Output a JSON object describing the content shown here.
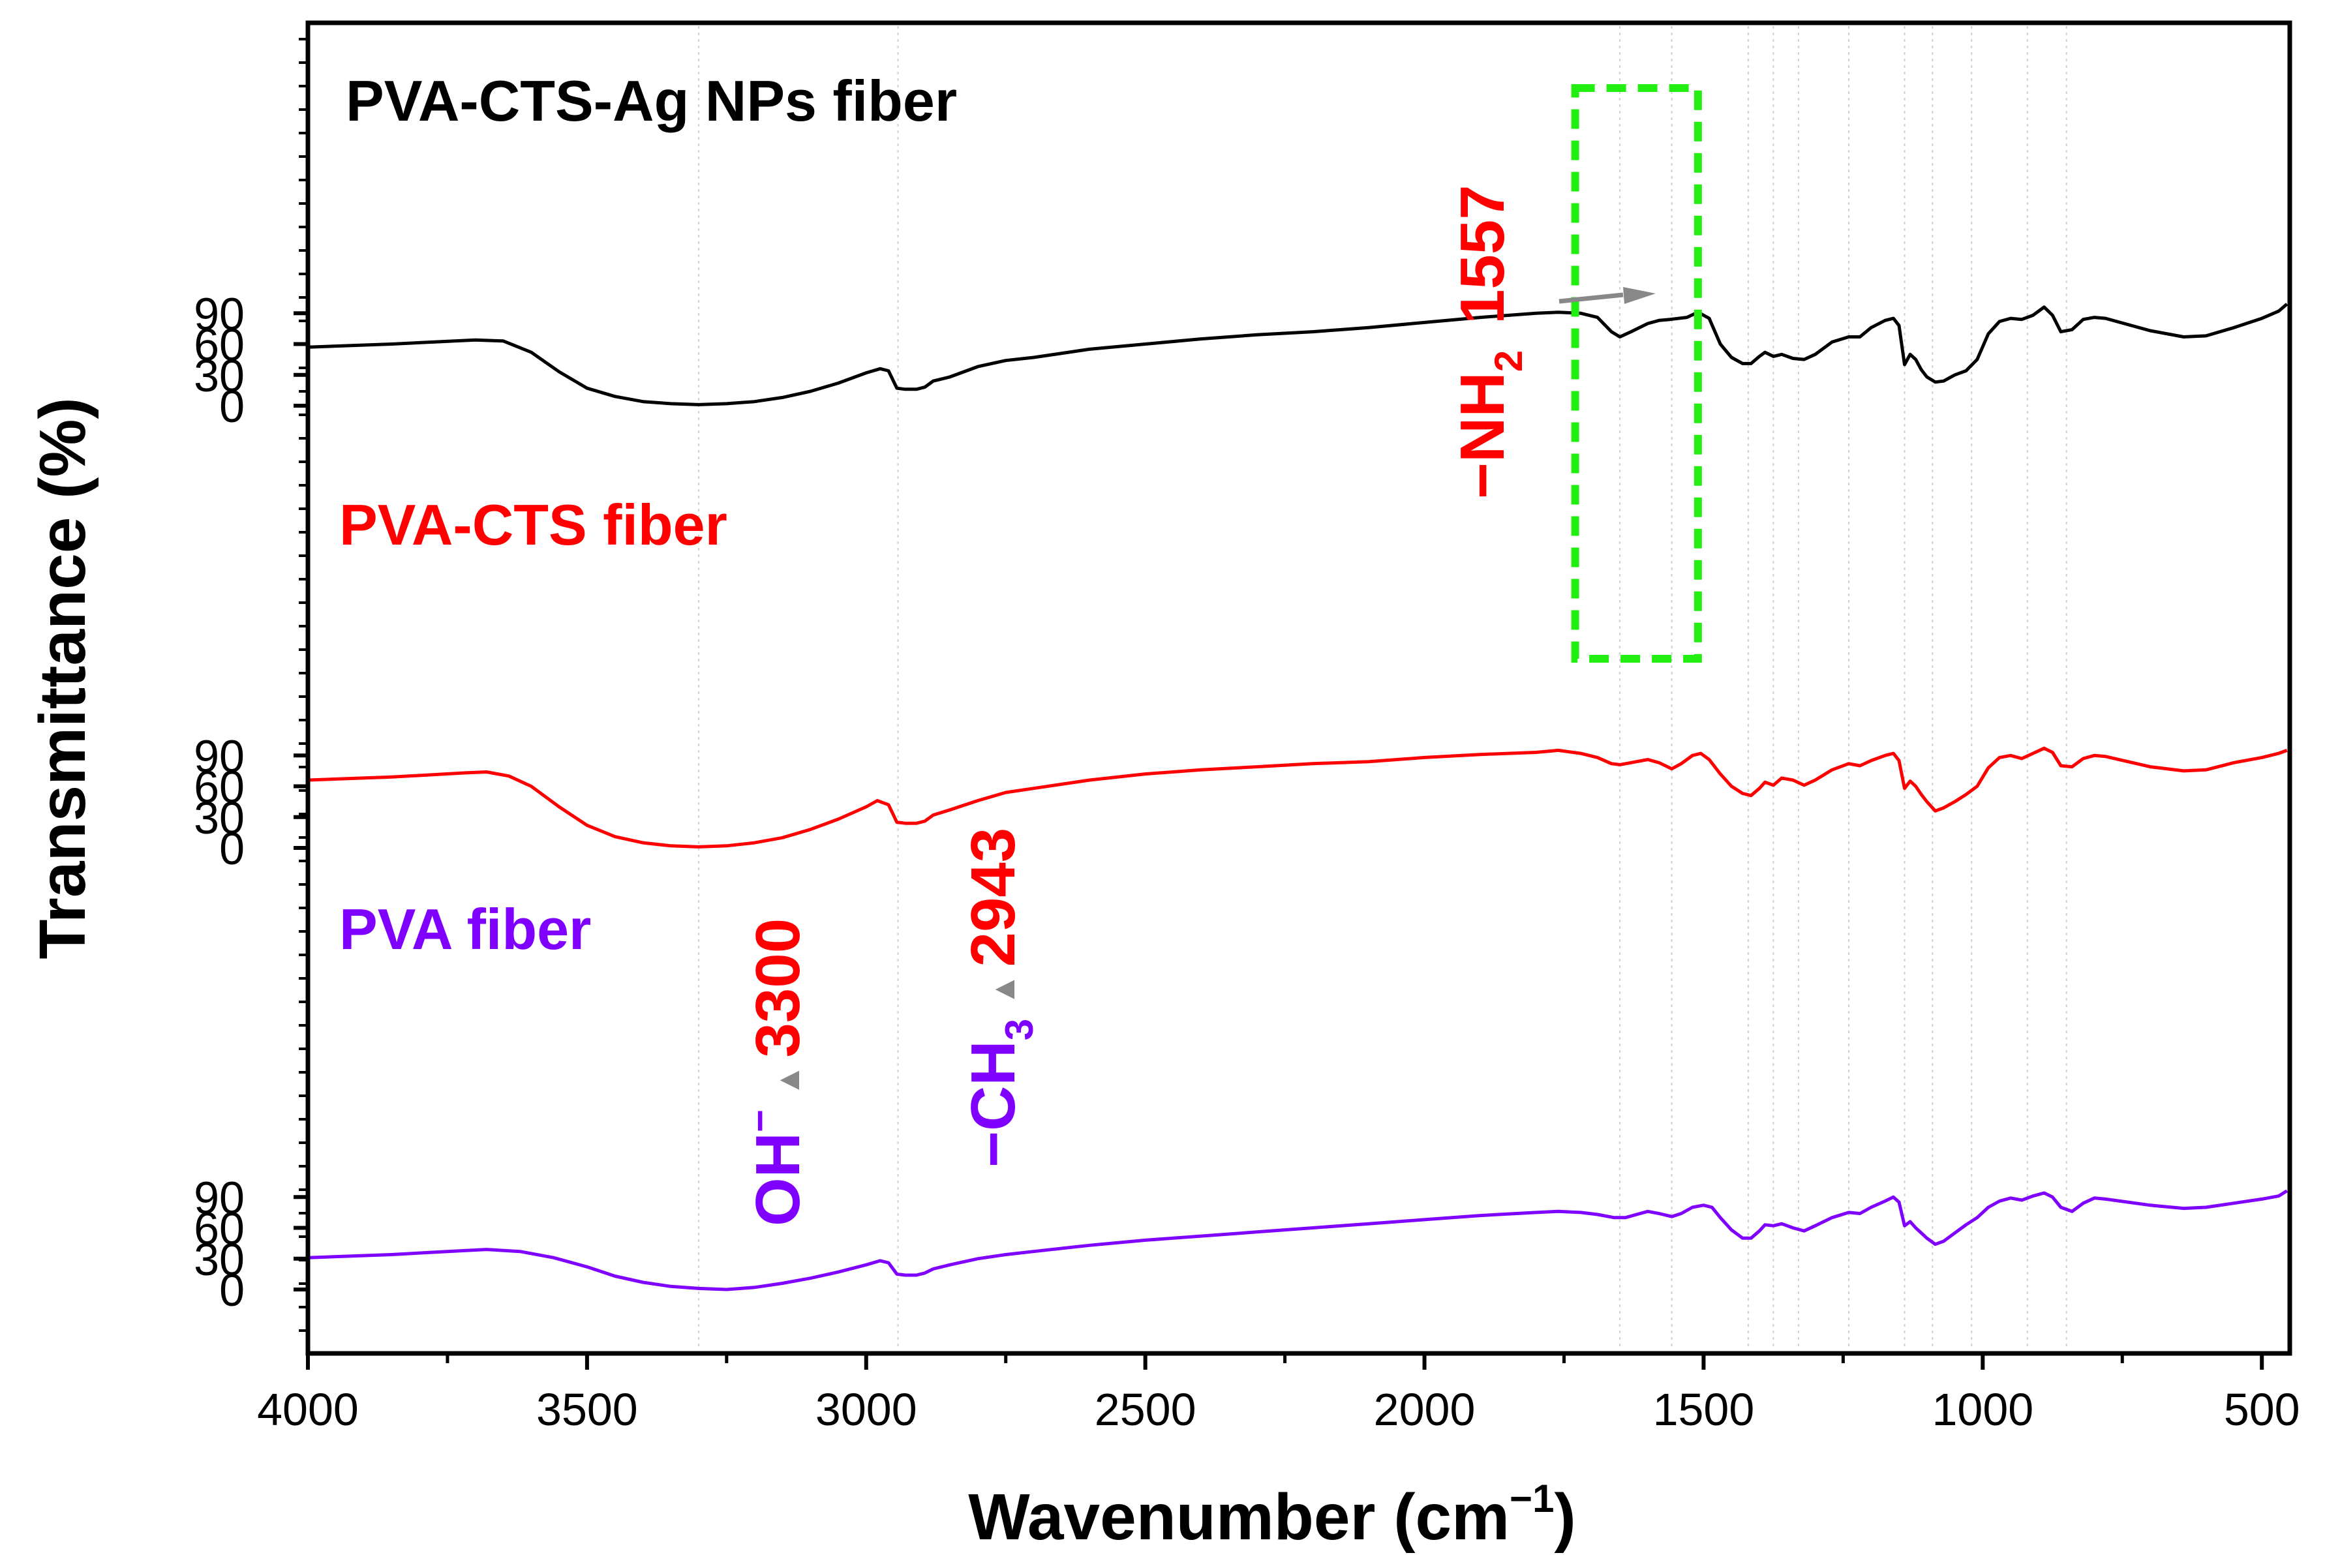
{
  "chart_data": {
    "type": "line",
    "xlabel": "Wavenumber (cm",
    "xlabel_sup": "−1",
    "xlabel_close": ")",
    "ylabel": "Transmittance (%)",
    "xlim": [
      4000,
      450
    ],
    "x_ticks": [
      4000,
      3500,
      3000,
      2500,
      2000,
      1500,
      1000,
      500
    ],
    "y_ticks": [
      0,
      30,
      60,
      90
    ],
    "reference_lines": [
      3300,
      2943,
      1650,
      1557,
      1420,
      1375,
      1330,
      1240,
      1140,
      1090,
      1020,
      920,
      850
    ],
    "series": [
      {
        "name": "PVA-CTS-Ag NPs fiber",
        "color": "#000000",
        "offset": 0,
        "points": [
          [
            4000,
            57
          ],
          [
            3850,
            60
          ],
          [
            3700,
            64
          ],
          [
            3650,
            63
          ],
          [
            3600,
            52
          ],
          [
            3550,
            33
          ],
          [
            3500,
            17
          ],
          [
            3450,
            9
          ],
          [
            3400,
            4
          ],
          [
            3350,
            2
          ],
          [
            3300,
            1
          ],
          [
            3250,
            2
          ],
          [
            3200,
            4
          ],
          [
            3150,
            8
          ],
          [
            3100,
            14
          ],
          [
            3050,
            22
          ],
          [
            3000,
            32
          ],
          [
            2975,
            36
          ],
          [
            2960,
            34
          ],
          [
            2945,
            17
          ],
          [
            2930,
            16
          ],
          [
            2910,
            16
          ],
          [
            2895,
            18
          ],
          [
            2880,
            24
          ],
          [
            2850,
            28
          ],
          [
            2800,
            38
          ],
          [
            2750,
            44
          ],
          [
            2700,
            47
          ],
          [
            2600,
            55
          ],
          [
            2500,
            60
          ],
          [
            2400,
            65
          ],
          [
            2300,
            69
          ],
          [
            2200,
            72
          ],
          [
            2100,
            76
          ],
          [
            2000,
            81
          ],
          [
            1900,
            86
          ],
          [
            1800,
            90
          ],
          [
            1760,
            91
          ],
          [
            1720,
            90
          ],
          [
            1690,
            86
          ],
          [
            1665,
            72
          ],
          [
            1650,
            67
          ],
          [
            1630,
            72
          ],
          [
            1600,
            80
          ],
          [
            1580,
            83
          ],
          [
            1560,
            84
          ],
          [
            1530,
            86
          ],
          [
            1510,
            91
          ],
          [
            1490,
            85
          ],
          [
            1470,
            60
          ],
          [
            1450,
            47
          ],
          [
            1430,
            41
          ],
          [
            1415,
            41
          ],
          [
            1400,
            48
          ],
          [
            1390,
            52
          ],
          [
            1375,
            48
          ],
          [
            1360,
            50
          ],
          [
            1340,
            46
          ],
          [
            1320,
            45
          ],
          [
            1300,
            50
          ],
          [
            1270,
            62
          ],
          [
            1240,
            67
          ],
          [
            1220,
            67
          ],
          [
            1200,
            76
          ],
          [
            1175,
            83
          ],
          [
            1160,
            85
          ],
          [
            1150,
            78
          ],
          [
            1140,
            40
          ],
          [
            1130,
            50
          ],
          [
            1120,
            45
          ],
          [
            1110,
            35
          ],
          [
            1100,
            28
          ],
          [
            1085,
            23
          ],
          [
            1070,
            24
          ],
          [
            1050,
            30
          ],
          [
            1030,
            34
          ],
          [
            1010,
            45
          ],
          [
            990,
            70
          ],
          [
            970,
            82
          ],
          [
            950,
            85
          ],
          [
            930,
            84
          ],
          [
            910,
            88
          ],
          [
            890,
            96
          ],
          [
            875,
            88
          ],
          [
            860,
            72
          ],
          [
            840,
            74
          ],
          [
            820,
            84
          ],
          [
            800,
            86
          ],
          [
            780,
            85
          ],
          [
            700,
            73
          ],
          [
            640,
            67
          ],
          [
            600,
            68
          ],
          [
            550,
            76
          ],
          [
            500,
            85
          ],
          [
            470,
            92
          ],
          [
            455,
            99
          ]
        ]
      },
      {
        "name": "PVA-CTS fiber",
        "color": "#ff0000",
        "offset": -130,
        "points": [
          [
            4000,
            66
          ],
          [
            3850,
            69
          ],
          [
            3720,
            73
          ],
          [
            3680,
            74
          ],
          [
            3640,
            70
          ],
          [
            3600,
            60
          ],
          [
            3550,
            40
          ],
          [
            3500,
            22
          ],
          [
            3450,
            11
          ],
          [
            3400,
            5
          ],
          [
            3350,
            2
          ],
          [
            3300,
            1
          ],
          [
            3250,
            2
          ],
          [
            3200,
            5
          ],
          [
            3150,
            10
          ],
          [
            3100,
            18
          ],
          [
            3050,
            28
          ],
          [
            3000,
            40
          ],
          [
            2980,
            46
          ],
          [
            2960,
            42
          ],
          [
            2945,
            25
          ],
          [
            2930,
            24
          ],
          [
            2910,
            24
          ],
          [
            2895,
            26
          ],
          [
            2880,
            32
          ],
          [
            2850,
            37
          ],
          [
            2800,
            46
          ],
          [
            2750,
            54
          ],
          [
            2700,
            58
          ],
          [
            2600,
            66
          ],
          [
            2500,
            72
          ],
          [
            2400,
            76
          ],
          [
            2300,
            79
          ],
          [
            2200,
            82
          ],
          [
            2100,
            84
          ],
          [
            2000,
            88
          ],
          [
            1900,
            91
          ],
          [
            1800,
            93
          ],
          [
            1760,
            95
          ],
          [
            1720,
            92
          ],
          [
            1690,
            88
          ],
          [
            1665,
            82
          ],
          [
            1650,
            81
          ],
          [
            1630,
            83
          ],
          [
            1600,
            86
          ],
          [
            1580,
            83
          ],
          [
            1557,
            77
          ],
          [
            1540,
            82
          ],
          [
            1520,
            90
          ],
          [
            1505,
            92
          ],
          [
            1490,
            86
          ],
          [
            1470,
            72
          ],
          [
            1450,
            60
          ],
          [
            1430,
            53
          ],
          [
            1415,
            51
          ],
          [
            1400,
            58
          ],
          [
            1390,
            64
          ],
          [
            1375,
            61
          ],
          [
            1360,
            68
          ],
          [
            1340,
            66
          ],
          [
            1320,
            61
          ],
          [
            1300,
            66
          ],
          [
            1270,
            76
          ],
          [
            1240,
            82
          ],
          [
            1220,
            80
          ],
          [
            1200,
            85
          ],
          [
            1175,
            90
          ],
          [
            1160,
            92
          ],
          [
            1150,
            85
          ],
          [
            1140,
            58
          ],
          [
            1130,
            65
          ],
          [
            1120,
            60
          ],
          [
            1110,
            52
          ],
          [
            1100,
            45
          ],
          [
            1085,
            36
          ],
          [
            1070,
            39
          ],
          [
            1050,
            45
          ],
          [
            1030,
            52
          ],
          [
            1010,
            60
          ],
          [
            990,
            78
          ],
          [
            970,
            88
          ],
          [
            950,
            90
          ],
          [
            930,
            87
          ],
          [
            910,
            92
          ],
          [
            890,
            97
          ],
          [
            875,
            93
          ],
          [
            860,
            80
          ],
          [
            840,
            79
          ],
          [
            820,
            87
          ],
          [
            800,
            90
          ],
          [
            780,
            89
          ],
          [
            700,
            79
          ],
          [
            640,
            75
          ],
          [
            600,
            76
          ],
          [
            550,
            83
          ],
          [
            500,
            88
          ],
          [
            470,
            92
          ],
          [
            455,
            95
          ]
        ]
      },
      {
        "name": "PVA fiber",
        "color": "#7f00ff",
        "offset": -260,
        "points": [
          [
            4000,
            31
          ],
          [
            3850,
            34
          ],
          [
            3750,
            37
          ],
          [
            3680,
            39
          ],
          [
            3620,
            37
          ],
          [
            3560,
            31
          ],
          [
            3500,
            22
          ],
          [
            3450,
            13
          ],
          [
            3400,
            7
          ],
          [
            3350,
            3
          ],
          [
            3300,
            1
          ],
          [
            3250,
            0
          ],
          [
            3200,
            2
          ],
          [
            3150,
            6
          ],
          [
            3100,
            11
          ],
          [
            3050,
            17
          ],
          [
            3000,
            24
          ],
          [
            2975,
            28
          ],
          [
            2960,
            26
          ],
          [
            2945,
            15
          ],
          [
            2930,
            14
          ],
          [
            2910,
            14
          ],
          [
            2895,
            16
          ],
          [
            2880,
            20
          ],
          [
            2850,
            24
          ],
          [
            2800,
            30
          ],
          [
            2750,
            34
          ],
          [
            2700,
            37
          ],
          [
            2600,
            43
          ],
          [
            2500,
            48
          ],
          [
            2400,
            52
          ],
          [
            2300,
            56
          ],
          [
            2200,
            60
          ],
          [
            2100,
            64
          ],
          [
            2000,
            68
          ],
          [
            1900,
            72
          ],
          [
            1800,
            75
          ],
          [
            1760,
            76
          ],
          [
            1720,
            75
          ],
          [
            1690,
            73
          ],
          [
            1660,
            70
          ],
          [
            1640,
            70
          ],
          [
            1620,
            73
          ],
          [
            1600,
            76
          ],
          [
            1580,
            74
          ],
          [
            1557,
            71
          ],
          [
            1540,
            74
          ],
          [
            1520,
            80
          ],
          [
            1500,
            82
          ],
          [
            1485,
            80
          ],
          [
            1470,
            70
          ],
          [
            1450,
            58
          ],
          [
            1430,
            50
          ],
          [
            1415,
            50
          ],
          [
            1400,
            57
          ],
          [
            1390,
            63
          ],
          [
            1375,
            62
          ],
          [
            1360,
            64
          ],
          [
            1340,
            60
          ],
          [
            1320,
            57
          ],
          [
            1300,
            62
          ],
          [
            1270,
            70
          ],
          [
            1240,
            75
          ],
          [
            1220,
            74
          ],
          [
            1200,
            80
          ],
          [
            1175,
            86
          ],
          [
            1160,
            90
          ],
          [
            1150,
            85
          ],
          [
            1140,
            62
          ],
          [
            1130,
            66
          ],
          [
            1120,
            60
          ],
          [
            1110,
            55
          ],
          [
            1100,
            50
          ],
          [
            1085,
            44
          ],
          [
            1070,
            47
          ],
          [
            1050,
            55
          ],
          [
            1030,
            63
          ],
          [
            1010,
            70
          ],
          [
            990,
            80
          ],
          [
            970,
            86
          ],
          [
            950,
            89
          ],
          [
            930,
            87
          ],
          [
            910,
            91
          ],
          [
            890,
            94
          ],
          [
            875,
            90
          ],
          [
            860,
            80
          ],
          [
            840,
            76
          ],
          [
            820,
            84
          ],
          [
            800,
            89
          ],
          [
            780,
            88
          ],
          [
            700,
            82
          ],
          [
            640,
            79
          ],
          [
            600,
            80
          ],
          [
            550,
            84
          ],
          [
            500,
            88
          ],
          [
            470,
            91
          ],
          [
            455,
            96
          ]
        ]
      }
    ],
    "annotations": {
      "label_3300": "3300",
      "label_oh": "OH",
      "label_oh_sup": "−",
      "label_2943": "2943",
      "label_ch3": "−CH",
      "label_ch3_sub": "3",
      "label_1557": "1557",
      "label_nh2": "−NH",
      "label_nh2_sub": "2"
    },
    "highlight_box": {
      "x_range": [
        1730,
        1510
      ],
      "top_transmittance_series": "PVA-CTS-Ag NPs fiber",
      "color": "#22ee11"
    }
  }
}
